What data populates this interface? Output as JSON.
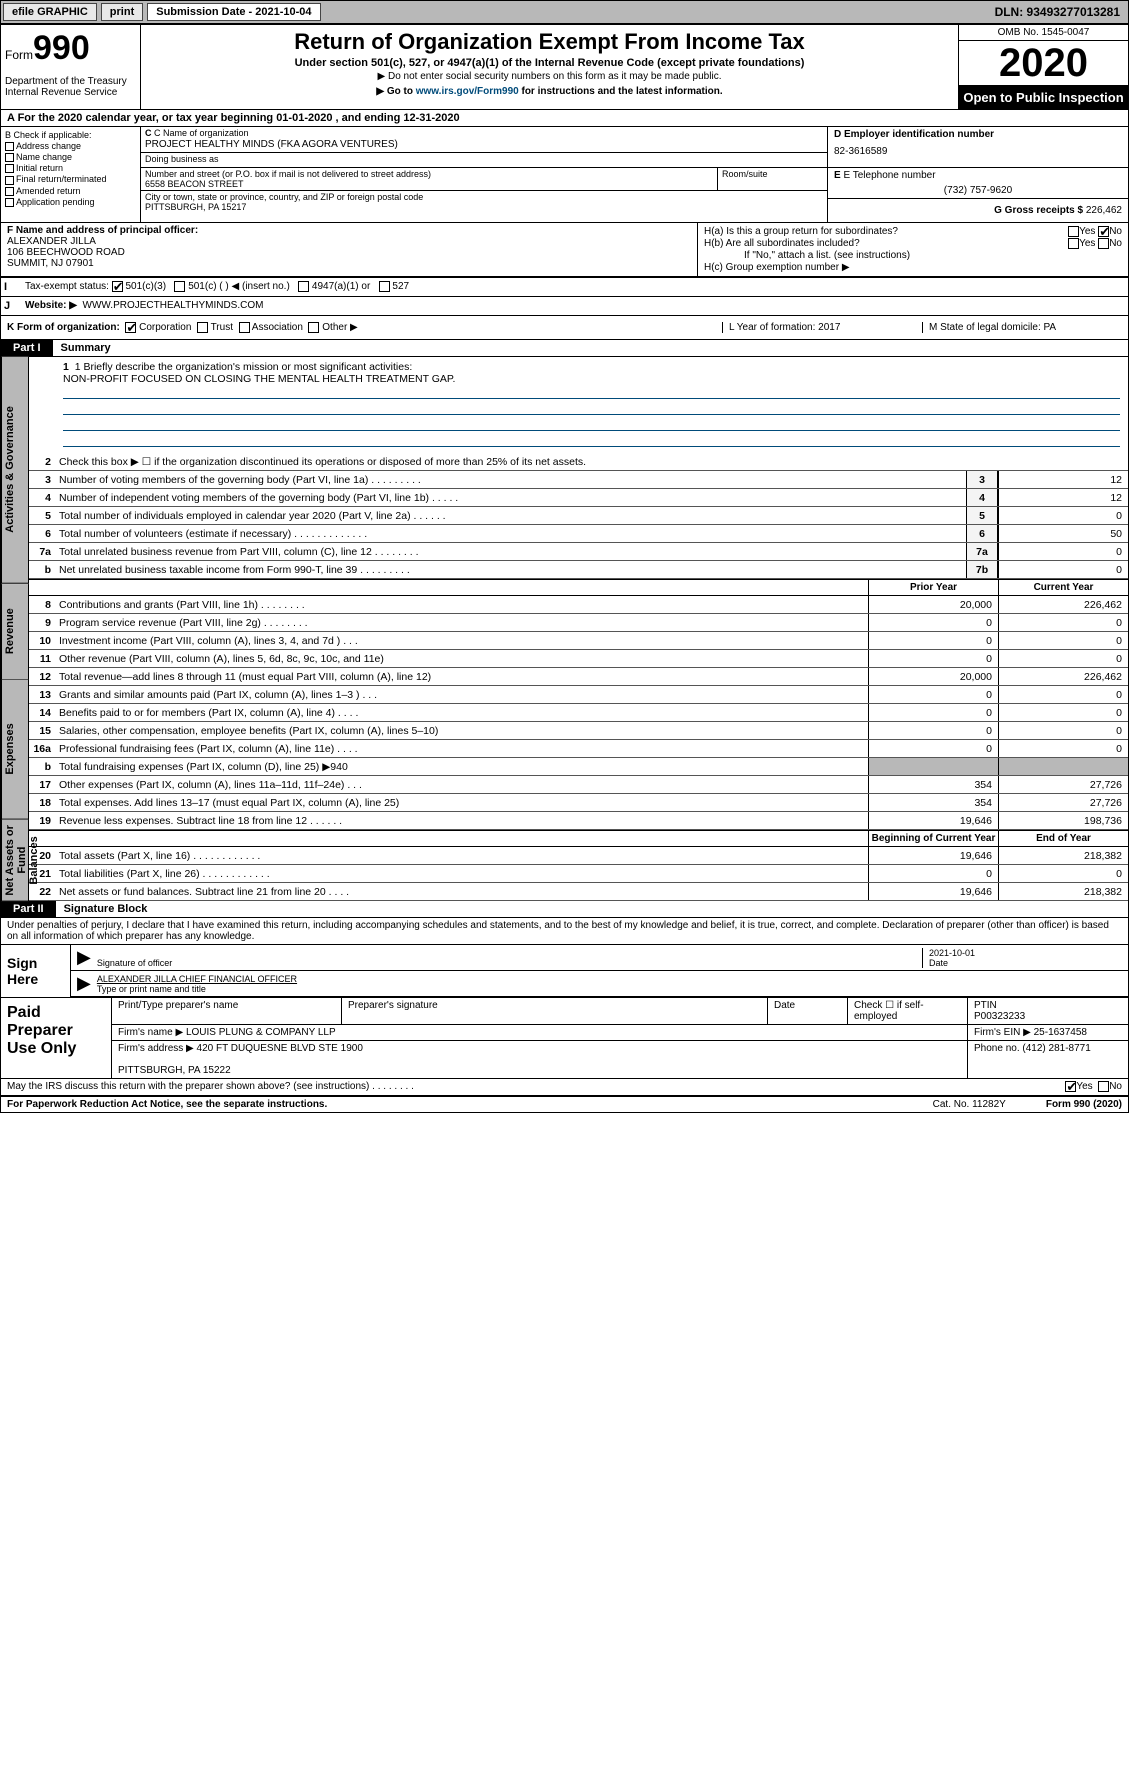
{
  "topbar": {
    "efile": "efile GRAPHIC",
    "print": "print",
    "submission": "Submission Date - 2021-10-04",
    "dln": "DLN: 93493277013281"
  },
  "header": {
    "form_prefix": "Form",
    "form_number": "990",
    "dept": "Department of the Treasury\nInternal Revenue Service",
    "title": "Return of Organization Exempt From Income Tax",
    "subtitle": "Under section 501(c), 527, or 4947(a)(1) of the Internal Revenue Code (except private foundations)",
    "note1": "▶ Do not enter social security numbers on this form as it may be made public.",
    "note2_pre": "▶ Go to ",
    "note2_link": "www.irs.gov/Form990",
    "note2_post": " for instructions and the latest information.",
    "omb": "OMB No. 1545-0047",
    "year": "2020",
    "open_public": "Open to Public Inspection"
  },
  "row_a": "A For the 2020 calendar year, or tax year beginning 01-01-2020     , and ending 12-31-2020",
  "col_b": {
    "title": "B Check if applicable:",
    "items": [
      "Address change",
      "Name change",
      "Initial return",
      "Final return/terminated",
      "Amended return",
      "Application pending"
    ]
  },
  "org": {
    "name_lbl": "C Name of organization",
    "name": "PROJECT HEALTHY MINDS (FKA AGORA VENTURES)",
    "dba_lbl": "Doing business as",
    "dba": "",
    "addr_lbl": "Number and street (or P.O. box if mail is not delivered to street address)",
    "addr": "6558 BEACON STREET",
    "room_lbl": "Room/suite",
    "city_lbl": "City or town, state or province, country, and ZIP or foreign postal code",
    "city": "PITTSBURGH, PA  15217"
  },
  "ein": {
    "lbl": "D Employer identification number",
    "val": "82-3616589"
  },
  "tel": {
    "lbl": "E Telephone number",
    "val": "(732) 757-9620"
  },
  "gross": {
    "lbl": "G Gross receipts $",
    "val": "226,462"
  },
  "officer": {
    "lbl": "F  Name and address of principal officer:",
    "name": "ALEXANDER JILLA",
    "addr": "106 BEECHWOOD ROAD\nSUMMIT, NJ  07901"
  },
  "h": {
    "a": "H(a)  Is this a group return for subordinates?",
    "b": "H(b)  Are all subordinates included?",
    "b_note": "If \"No,\" attach a list. (see instructions)",
    "c": "H(c)  Group exemption number ▶"
  },
  "i": {
    "lbl": "Tax-exempt status:",
    "opts": [
      "501(c)(3)",
      "501(c) (   ) ◀ (insert no.)",
      "4947(a)(1) or",
      "527"
    ]
  },
  "j": {
    "lbl": "Website: ▶",
    "val": "WWW.PROJECTHEALTHYMINDS.COM"
  },
  "k": {
    "lbl": "K Form of organization:",
    "opts": [
      "Corporation",
      "Trust",
      "Association",
      "Other ▶"
    ],
    "l": "L Year of formation: 2017",
    "m": "M State of legal domicile: PA"
  },
  "part1": {
    "hdr": "Part I",
    "title": "Summary"
  },
  "mission": {
    "q": "1  Briefly describe the organization's mission or most significant activities:",
    "a": "NON-PROFIT FOCUSED ON CLOSING THE MENTAL HEALTH TREATMENT GAP."
  },
  "lines_gov": [
    {
      "n": "2",
      "t": "Check this box ▶ ☐  if the organization discontinued its operations or disposed of more than 25% of its net assets."
    },
    {
      "n": "3",
      "t": "Number of voting members of the governing body (Part VI, line 1a)   .    .    .    .    .    .    .    .    .",
      "box": "3",
      "v": "12"
    },
    {
      "n": "4",
      "t": "Number of independent voting members of the governing body (Part VI, line 1b)   .    .    .    .    .",
      "box": "4",
      "v": "12"
    },
    {
      "n": "5",
      "t": "Total number of individuals employed in calendar year 2020 (Part V, line 2a)   .    .    .    .    .    .",
      "box": "5",
      "v": "0"
    },
    {
      "n": "6",
      "t": "Total number of volunteers (estimate if necessary)   .    .    .    .    .    .    .    .    .    .    .    .    .",
      "box": "6",
      "v": "50"
    },
    {
      "n": "7a",
      "t": "Total unrelated business revenue from Part VIII, column (C), line 12   .    .    .    .    .    .    .    .",
      "box": "7a",
      "v": "0"
    },
    {
      "n": "b",
      "t": "Net unrelated business taxable income from Form 990-T, line 39   .    .    .    .    .    .    .    .    .",
      "box": "7b",
      "v": "0"
    }
  ],
  "cols_rev": {
    "prior": "Prior Year",
    "current": "Current Year"
  },
  "lines_rev": [
    {
      "n": "8",
      "t": "Contributions and grants (Part VIII, line 1h)   .    .    .    .    .    .    .    .",
      "p": "20,000",
      "c": "226,462"
    },
    {
      "n": "9",
      "t": "Program service revenue (Part VIII, line 2g)   .    .    .    .    .    .    .    .",
      "p": "0",
      "c": "0"
    },
    {
      "n": "10",
      "t": "Investment income (Part VIII, column (A), lines 3, 4, and 7d )   .    .    .",
      "p": "0",
      "c": "0"
    },
    {
      "n": "11",
      "t": "Other revenue (Part VIII, column (A), lines 5, 6d, 8c, 9c, 10c, and 11e)",
      "p": "0",
      "c": "0"
    },
    {
      "n": "12",
      "t": "Total revenue—add lines 8 through 11 (must equal Part VIII, column (A), line 12)",
      "p": "20,000",
      "c": "226,462"
    }
  ],
  "lines_exp": [
    {
      "n": "13",
      "t": "Grants and similar amounts paid (Part IX, column (A), lines 1–3 )   .    .    .",
      "p": "0",
      "c": "0"
    },
    {
      "n": "14",
      "t": "Benefits paid to or for members (Part IX, column (A), line 4)   .    .    .    .",
      "p": "0",
      "c": "0"
    },
    {
      "n": "15",
      "t": "Salaries, other compensation, employee benefits (Part IX, column (A), lines 5–10)",
      "p": "0",
      "c": "0"
    },
    {
      "n": "16a",
      "t": "Professional fundraising fees (Part IX, column (A), line 11e)   .    .    .    .",
      "p": "0",
      "c": "0"
    },
    {
      "n": "b",
      "t": "Total fundraising expenses (Part IX, column (D), line 25) ▶940",
      "p": "",
      "c": "",
      "gray": true
    },
    {
      "n": "17",
      "t": "Other expenses (Part IX, column (A), lines 11a–11d, 11f–24e)   .    .    .",
      "p": "354",
      "c": "27,726"
    },
    {
      "n": "18",
      "t": "Total expenses. Add lines 13–17 (must equal Part IX, column (A), line 25)",
      "p": "354",
      "c": "27,726"
    },
    {
      "n": "19",
      "t": "Revenue less expenses. Subtract line 18 from line 12   .    .    .    .    .    .",
      "p": "19,646",
      "c": "198,736"
    }
  ],
  "cols_net": {
    "begin": "Beginning of Current Year",
    "end": "End of Year"
  },
  "lines_net": [
    {
      "n": "20",
      "t": "Total assets (Part X, line 16)   .    .    .    .    .    .    .    .    .    .    .    .",
      "p": "19,646",
      "c": "218,382"
    },
    {
      "n": "21",
      "t": "Total liabilities (Part X, line 26)   .    .    .    .    .    .    .    .    .    .    .    .",
      "p": "0",
      "c": "0"
    },
    {
      "n": "22",
      "t": "Net assets or fund balances. Subtract line 21 from line 20   .    .    .    .",
      "p": "19,646",
      "c": "218,382"
    }
  ],
  "part2": {
    "hdr": "Part II",
    "title": "Signature Block"
  },
  "sig": {
    "decl": "Under penalties of perjury, I declare that I have examined this return, including accompanying schedules and statements, and to the best of my knowledge and belief, it is true, correct, and complete. Declaration of preparer (other than officer) is based on all information of which preparer has any knowledge.",
    "sign_here": "Sign Here",
    "sig_lbl": "Signature of officer",
    "date": "2021-10-01",
    "date_lbl": "Date",
    "name": "ALEXANDER JILLA  CHIEF FINANCIAL OFFICER",
    "name_lbl": "Type or print name and title"
  },
  "paid": {
    "title": "Paid Preparer Use Only",
    "h1": "Print/Type preparer's name",
    "h2": "Preparer's signature",
    "h3": "Date",
    "h4_chk": "Check ☐ if self-employed",
    "h5": "PTIN",
    "ptin": "P00323233",
    "firm_lbl": "Firm's name      ▶",
    "firm": "LOUIS PLUNG & COMPANY LLP",
    "ein_lbl": "Firm's EIN ▶",
    "ein": "25-1637458",
    "addr_lbl": "Firm's address ▶",
    "addr": "420 FT DUQUESNE BLVD STE 1900\n\nPITTSBURGH, PA  15222",
    "phone_lbl": "Phone no.",
    "phone": "(412) 281-8771"
  },
  "discuss": "May the IRS discuss this return with the preparer shown above? (see instructions)   .    .    .    .    .    .    .    .",
  "footer": {
    "left": "For Paperwork Reduction Act Notice, see the separate instructions.",
    "mid": "Cat. No. 11282Y",
    "right": "Form 990 (2020)"
  },
  "vtabs": [
    "Activities & Governance",
    "Revenue",
    "Expenses",
    "Net Assets or Fund Balances"
  ]
}
